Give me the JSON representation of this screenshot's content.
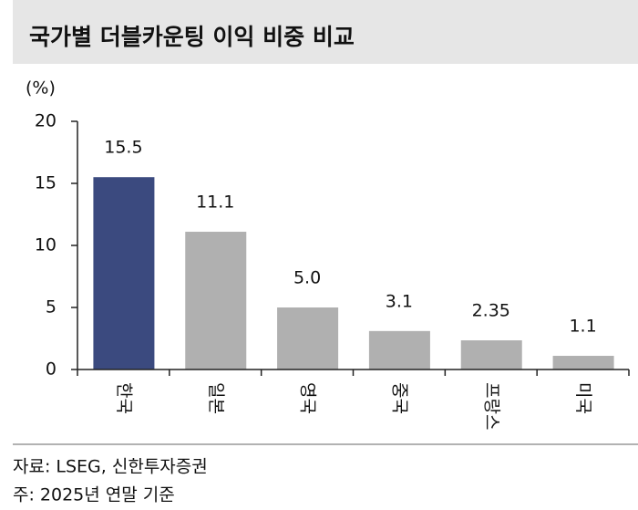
{
  "chart_data": {
    "type": "bar",
    "title": "국가별 더블카운팅 이익 비중 비교",
    "y_label": "(%)",
    "categories": [
      "한국",
      "일본",
      "영국",
      "중국",
      "프랑스",
      "미국"
    ],
    "values": [
      15.5,
      11.1,
      5,
      3.1,
      2.35,
      1.1
    ],
    "value_labels": [
      "15.5",
      "11.1",
      "5.0",
      "3.1",
      "2.35",
      "1.1"
    ],
    "colors": [
      "#3b4a7f",
      "#b0b0b0",
      "#b0b0b0",
      "#b0b0b0",
      "#b0b0b0",
      "#b0b0b0"
    ],
    "ylim": [
      0,
      20
    ],
    "yticks": [
      0,
      5,
      10,
      15,
      20
    ],
    "grid": false,
    "notes": [
      "자료: LSEG, 신한투자증권",
      "주: 2025년 연말 기준"
    ]
  }
}
